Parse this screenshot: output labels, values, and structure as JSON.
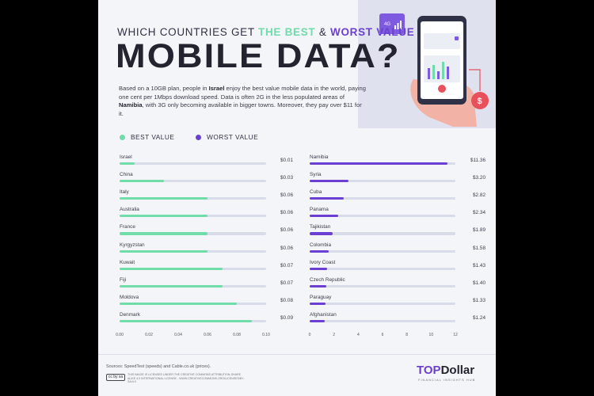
{
  "header": {
    "pretitle_prefix": "WHICH COUNTRIES GET",
    "pretitle_best": "THE BEST",
    "pretitle_amp": "&",
    "pretitle_worst": "WORST VALUE",
    "title": "MOBILE DATA?",
    "desc_1": "Based on a 10GB plan, people in ",
    "desc_israel": "Israel",
    "desc_2": " enjoy the best value mobile data in the world, paying one cent per 1Mbps download speed. Data is often 2G in the less populated areas of ",
    "desc_namibia": "Namibia",
    "desc_3": ", with 3G only becoming available in bigger towns. Moreover, they pay over $11 for it."
  },
  "legend": {
    "best": "BEST VALUE",
    "worst": "WORST VALUE"
  },
  "colors": {
    "best": "#6fdcaa",
    "worst": "#6b3fd1",
    "track": "#d8dbe8",
    "coin": "#e8505b"
  },
  "illustration": {
    "badge": "4G",
    "coin_symbol": "$"
  },
  "chart_data": [
    {
      "type": "bar",
      "orientation": "horizontal",
      "series": [
        {
          "name": "BEST VALUE",
          "values": [
            0.01,
            0.03,
            0.06,
            0.06,
            0.06,
            0.06,
            0.07,
            0.07,
            0.08,
            0.09
          ]
        }
      ],
      "categories": [
        "Israel",
        "China",
        "Italy",
        "Australia",
        "France",
        "Kyrgyzstan",
        "Kuwait",
        "Fiji",
        "Moldova",
        "Denmark"
      ],
      "value_labels": [
        "$0.01",
        "$0.03",
        "$0.06",
        "$0.06",
        "$0.06",
        "$0.06",
        "$0.07",
        "$0.07",
        "$0.08",
        "$0.09"
      ],
      "xlim": [
        0,
        0.1
      ],
      "xticks": [
        "0.00",
        "0.02",
        "0.04",
        "0.06",
        "0.08",
        "0.10"
      ]
    },
    {
      "type": "bar",
      "orientation": "horizontal",
      "series": [
        {
          "name": "WORST VALUE",
          "values": [
            11.36,
            3.2,
            2.82,
            2.34,
            1.89,
            1.58,
            1.43,
            1.4,
            1.33,
            1.24
          ]
        }
      ],
      "categories": [
        "Namibia",
        "Syria",
        "Cuba",
        "Panama",
        "Tajikistan",
        "Colombia",
        "Ivory Coast",
        "Czech Republic",
        "Paraguay",
        "Afghanistan"
      ],
      "value_labels": [
        "$11.36",
        "$3.20",
        "$2.82",
        "$2.34",
        "$1.89",
        "$1.58",
        "$1.43",
        "$1.40",
        "$1.33",
        "$1.24"
      ],
      "xlim": [
        0,
        12
      ],
      "xticks": [
        "0",
        "2",
        "4",
        "6",
        "8",
        "10",
        "12"
      ]
    }
  ],
  "footer": {
    "sources": "Sources: SpeedTest (speeds) and Cable.co.uk (prices).",
    "license": "THIS IMAGE IS LICENSED UNDER THE CREATIVE COMMONS ATTRIBUTION-SHARE ALIKE 4.0 INTERNATIONAL LICENSE - WWW.CREATIVECOMMONS.ORG/LICENSES/BY-SA/4.0",
    "cc_badge": "cc by sa",
    "logo_top": "TOP",
    "logo_dollar": "Dollar",
    "logo_sub": "FINANCIAL INSIGHTS HUB"
  }
}
